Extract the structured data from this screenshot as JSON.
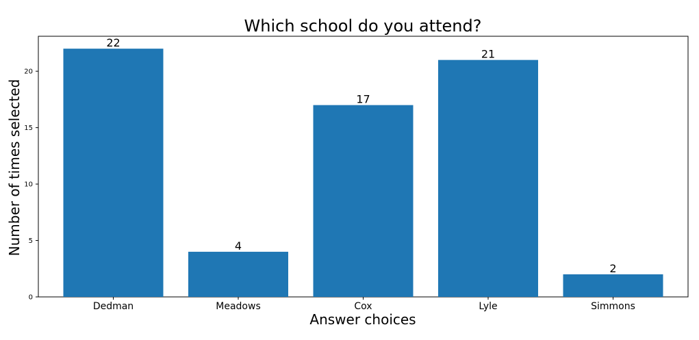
{
  "chart_data": {
    "type": "bar",
    "title": "Which school do you attend?",
    "xlabel": "Answer choices",
    "ylabel": "Number of times selected",
    "categories": [
      "Dedman",
      "Meadows",
      "Cox",
      "Lyle",
      "Simmons"
    ],
    "values": [
      22,
      4,
      17,
      21,
      2
    ],
    "ylim": [
      0,
      23.1
    ],
    "yticks": [
      0,
      5,
      10,
      15,
      20
    ],
    "bar_color": "#1f77b4",
    "grid": false,
    "legend": "none",
    "data_labels_shown": true
  }
}
